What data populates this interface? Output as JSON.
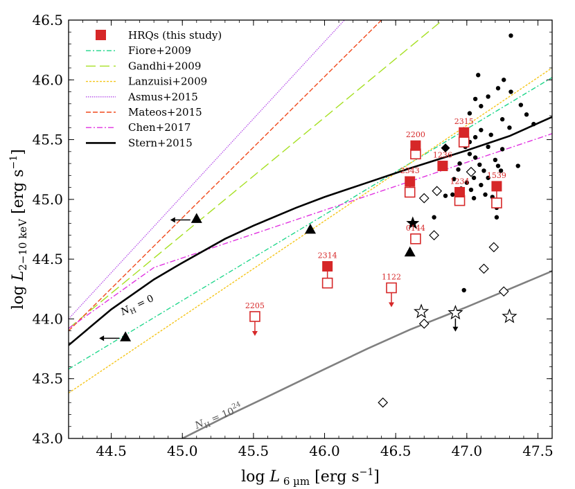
{
  "chart_data": {
    "type": "scatter",
    "x_range": [
      44.2,
      47.6
    ],
    "y_range": [
      43.0,
      46.5
    ],
    "x_ticks": [
      "44.5",
      "45.0",
      "45.5",
      "46.0",
      "46.5",
      "47.0",
      "47.5"
    ],
    "y_ticks": [
      "43.0",
      "43.5",
      "44.0",
      "44.5",
      "45.0",
      "45.5",
      "46.0",
      "46.5"
    ],
    "xlabel": "log L 6 µm [erg s−1]",
    "ylabel": "log L 2−10 keV [erg s−1]",
    "legend_position": "top-left",
    "colors": {
      "hrq": "#d62728",
      "fiore": "#1dd68a",
      "gandhi": "#a6e022",
      "lanzuisi": "#f5c518",
      "asmus": "#b44de8",
      "mateos": "#f0491c",
      "chen": "#e032e0",
      "stern": "#000000",
      "nh_high": "#808080"
    },
    "legend": [
      {
        "key": "hrq",
        "label": "HRQs (this study)"
      },
      {
        "key": "fiore",
        "label": "Fiore+2009"
      },
      {
        "key": "gandhi",
        "label": "Gandhi+2009"
      },
      {
        "key": "lanzuisi",
        "label": "Lanzuisi+2009"
      },
      {
        "key": "asmus",
        "label": "Asmus+2015"
      },
      {
        "key": "mateos",
        "label": "Mateos+2015"
      },
      {
        "key": "chen",
        "label": "Chen+2017"
      },
      {
        "key": "stern",
        "label": "Stern+2015"
      }
    ],
    "relations": {
      "fiore": [
        [
          44.2,
          43.58
        ],
        [
          47.6,
          46.02
        ]
      ],
      "gandhi": [
        [
          44.2,
          43.92
        ],
        [
          46.83,
          46.5
        ]
      ],
      "lanzuisi": [
        [
          44.2,
          43.38
        ],
        [
          47.6,
          46.1
        ]
      ],
      "asmus": [
        [
          44.2,
          44.0
        ],
        [
          46.14,
          46.5
        ]
      ],
      "mateos": [
        [
          44.2,
          43.9
        ],
        [
          46.4,
          46.5
        ]
      ],
      "chen": [
        [
          44.2,
          43.92
        ],
        [
          44.8,
          44.43
        ],
        [
          47.6,
          45.55
        ]
      ]
    },
    "stern_curve": {
      "label": "N_H = 0",
      "points": [
        [
          44.2,
          43.78
        ],
        [
          44.5,
          44.08
        ],
        [
          44.8,
          44.33
        ],
        [
          45.0,
          44.47
        ],
        [
          45.3,
          44.67
        ],
        [
          45.5,
          44.78
        ],
        [
          45.8,
          44.93
        ],
        [
          46.0,
          45.02
        ],
        [
          46.3,
          45.14
        ],
        [
          46.6,
          45.26
        ],
        [
          47.0,
          45.41
        ],
        [
          47.3,
          45.53
        ],
        [
          47.6,
          45.69
        ]
      ]
    },
    "nh_curve": {
      "label": "N_H = 10^24",
      "points": [
        [
          45.0,
          43.0
        ],
        [
          45.3,
          43.18
        ],
        [
          45.6,
          43.35
        ],
        [
          46.0,
          43.58
        ],
        [
          46.3,
          43.75
        ],
        [
          46.6,
          43.91
        ],
        [
          47.0,
          44.1
        ],
        [
          47.3,
          44.25
        ],
        [
          47.6,
          44.4
        ]
      ]
    },
    "hrq_sources": [
      {
        "id": "2200",
        "x": 46.64,
        "filled_y": 45.45,
        "open_y": 45.38
      },
      {
        "id": "2315",
        "x": 46.98,
        "filled_y": 45.56,
        "open_y": 45.48
      },
      {
        "id": "1236",
        "x": 46.83,
        "filled_y": 45.28,
        "open_y": null
      },
      {
        "id": "2343",
        "x": 46.6,
        "filled_y": 45.15,
        "open_y": 45.06
      },
      {
        "id": "1234",
        "x": 46.95,
        "filled_y": 45.06,
        "open_y": 44.99
      },
      {
        "id": "1539",
        "x": 47.21,
        "filled_y": 45.11,
        "open_y": 44.97
      },
      {
        "id": "0144",
        "x": 46.64,
        "filled_y": null,
        "open_y": 44.67
      },
      {
        "id": "2314",
        "x": 46.02,
        "filled_y": 44.44,
        "open_y": 44.3
      },
      {
        "id": "1122",
        "x": 46.47,
        "filled_y": null,
        "open_y": 44.26,
        "upper_limit": true
      },
      {
        "id": "2205",
        "x": 45.51,
        "filled_y": null,
        "open_y": 44.02,
        "upper_limit": true
      }
    ],
    "triangles": [
      {
        "x": 45.1,
        "y": 44.84,
        "left_arrow": true
      },
      {
        "x": 44.6,
        "y": 43.85,
        "left_arrow": true
      },
      {
        "x": 45.9,
        "y": 44.75
      },
      {
        "x": 46.6,
        "y": 44.56
      }
    ],
    "filled_stars": [
      {
        "x": 46.62,
        "y": 44.8
      }
    ],
    "open_stars": [
      {
        "x": 46.68,
        "y": 44.06
      },
      {
        "x": 46.92,
        "y": 44.05,
        "down_arrow": true
      },
      {
        "x": 47.3,
        "y": 44.02
      }
    ],
    "filled_diamonds": [
      {
        "x": 46.85,
        "y": 45.43
      }
    ],
    "open_diamonds": [
      {
        "x": 46.7,
        "y": 45.01
      },
      {
        "x": 46.79,
        "y": 45.07
      },
      {
        "x": 46.77,
        "y": 44.7
      },
      {
        "x": 47.03,
        "y": 45.23
      },
      {
        "x": 46.7,
        "y": 43.96
      },
      {
        "x": 47.19,
        "y": 44.6
      },
      {
        "x": 47.12,
        "y": 44.42
      },
      {
        "x": 47.26,
        "y": 44.23
      },
      {
        "x": 46.41,
        "y": 43.3
      }
    ],
    "dots": [
      [
        47.31,
        46.37
      ],
      [
        47.08,
        46.04
      ],
      [
        47.26,
        46.0
      ],
      [
        47.22,
        45.93
      ],
      [
        47.31,
        45.9
      ],
      [
        47.15,
        45.86
      ],
      [
        47.06,
        45.84
      ],
      [
        47.38,
        45.79
      ],
      [
        47.1,
        45.78
      ],
      [
        47.02,
        45.72
      ],
      [
        47.25,
        45.67
      ],
      [
        47.42,
        45.71
      ],
      [
        47.47,
        45.63
      ],
      [
        47.3,
        45.6
      ],
      [
        47.1,
        45.58
      ],
      [
        47.06,
        45.52
      ],
      [
        47.17,
        45.54
      ],
      [
        47.02,
        45.48
      ],
      [
        46.99,
        45.44
      ],
      [
        47.15,
        45.44
      ],
      [
        47.25,
        45.42
      ],
      [
        47.02,
        45.38
      ],
      [
        47.06,
        45.35
      ],
      [
        47.2,
        45.33
      ],
      [
        46.95,
        45.3
      ],
      [
        47.09,
        45.29
      ],
      [
        47.22,
        45.28
      ],
      [
        47.36,
        45.28
      ],
      [
        47.12,
        45.24
      ],
      [
        47.24,
        45.24
      ],
      [
        47.05,
        45.18
      ],
      [
        47.15,
        45.18
      ],
      [
        46.91,
        45.17
      ],
      [
        47.0,
        45.14
      ],
      [
        47.1,
        45.12
      ],
      [
        47.03,
        45.08
      ],
      [
        46.96,
        45.09
      ],
      [
        47.2,
        45.1
      ],
      [
        46.9,
        45.04
      ],
      [
        47.13,
        45.04
      ],
      [
        47.05,
        45.01
      ],
      [
        46.85,
        45.03
      ],
      [
        47.21,
        44.93
      ],
      [
        46.77,
        44.85
      ],
      [
        47.21,
        44.85
      ],
      [
        46.98,
        44.24
      ],
      [
        46.94,
        45.25
      ],
      [
        47.18,
        45.02
      ]
    ]
  }
}
